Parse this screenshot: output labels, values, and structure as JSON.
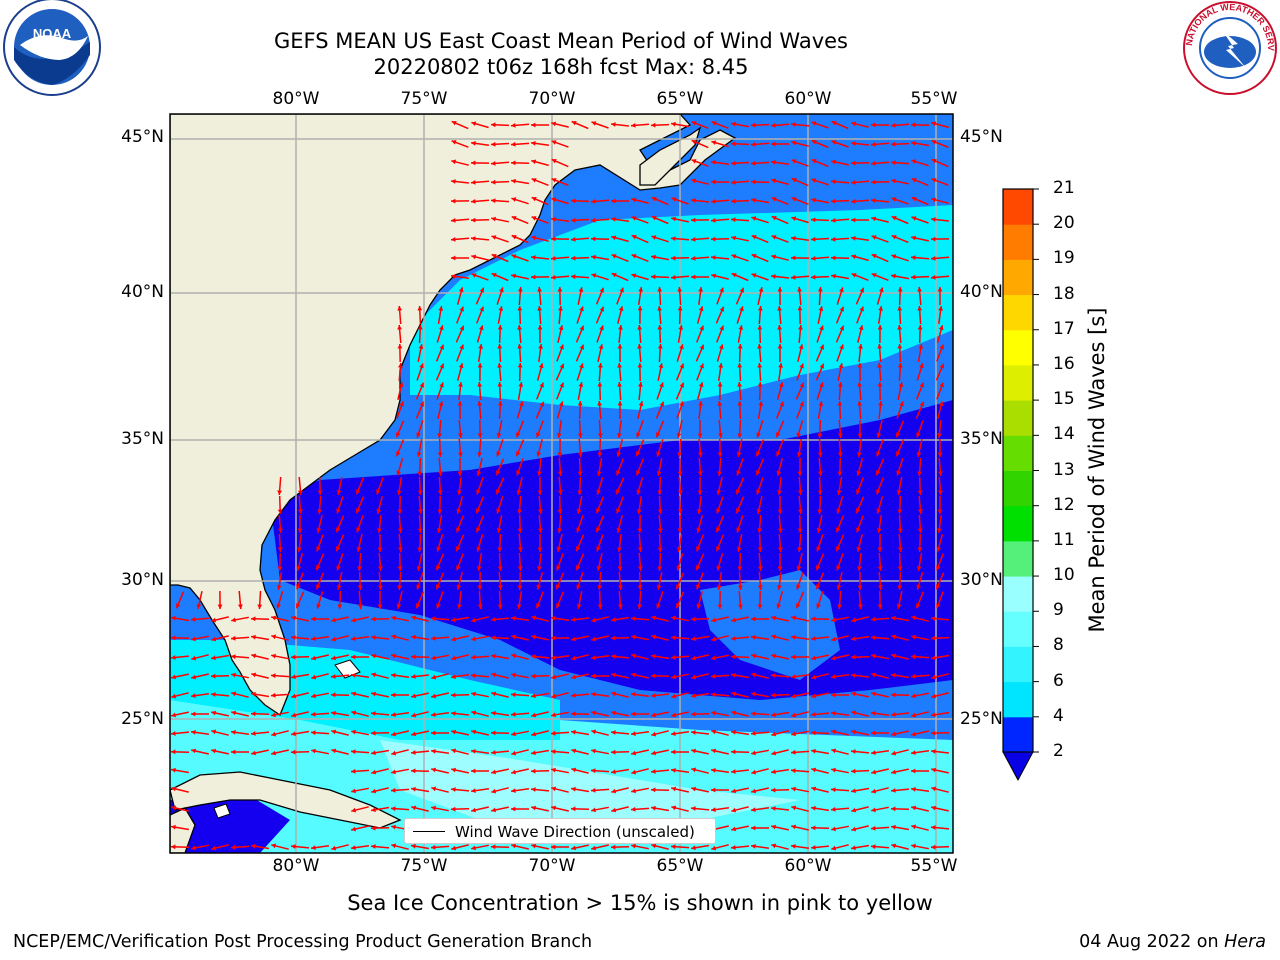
{
  "title": {
    "line1": "GEFS MEAN US East Coast Mean Period of Wind Waves",
    "line2": "20220802 t06z 168h fcst   Max: 8.45"
  },
  "logos": {
    "left": "NOAA",
    "right": "NATIONAL WEATHER SERVICE"
  },
  "axes": {
    "lon_labels": [
      "80°W",
      "75°W",
      "70°W",
      "65°W",
      "60°W",
      "55°W"
    ],
    "lat_labels": [
      "45°N",
      "40°N",
      "35°N",
      "30°N",
      "25°N"
    ]
  },
  "legend": {
    "label": "Wind Wave Direction (unscaled)"
  },
  "colorbar": {
    "title": "Mean Period of Wind Waves [s]",
    "ticks": [
      "2",
      "4",
      "6",
      "8",
      "9",
      "10",
      "11",
      "12",
      "13",
      "14",
      "15",
      "16",
      "17",
      "18",
      "19",
      "20",
      "21"
    ],
    "colors": [
      "#0026ff",
      "#00e5ff",
      "#33f3ff",
      "#66ffff",
      "#99ffff",
      "#55f07a",
      "#00e000",
      "#32d400",
      "#66dd00",
      "#aadd00",
      "#ddee00",
      "#ffff00",
      "#ffd700",
      "#ffa800",
      "#ff7c00",
      "#ff4800",
      "#ff0000"
    ],
    "under_color": "#0a00e6"
  },
  "map_colors": {
    "land": "#efefdc",
    "very_low": "#1400ee",
    "low": "#1e7cff",
    "mid": "#00f0ff",
    "high": "#55fbff",
    "higher": "#9dfdff",
    "arrow": "#ff0000",
    "grid": "#b0b0b0"
  },
  "footer": {
    "note": "Sea Ice Concentration > 15% is shown in pink to yellow",
    "credit_left": "NCEP/EMC/Verification Post Processing Product Generation Branch",
    "credit_right_date": "04 Aug 2022 on ",
    "credit_right_host": "Hera"
  }
}
